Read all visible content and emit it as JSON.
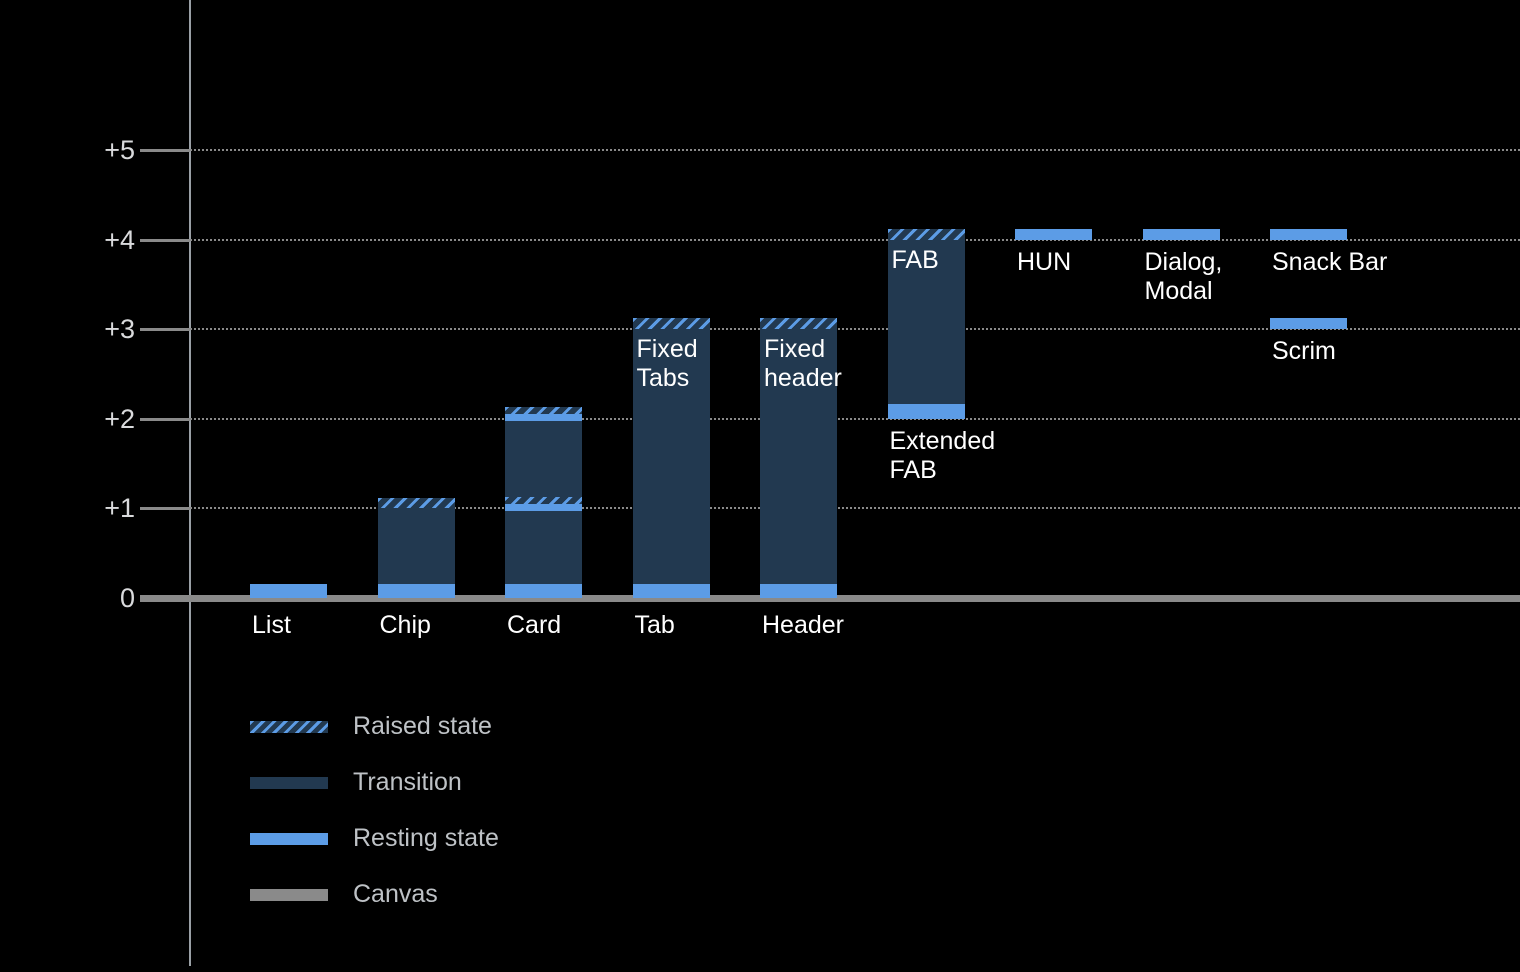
{
  "chart_data": {
    "type": "bar",
    "title": "",
    "background": "#000000",
    "ylim": [
      0,
      5.8
    ],
    "grid": {
      "style": "dotted",
      "levels": [
        1,
        2,
        3,
        4,
        5
      ],
      "baseline_value": 0,
      "baseline_style": "solid"
    },
    "yticks": [
      {
        "value": 5,
        "label": "+5"
      },
      {
        "value": 4,
        "label": "+4"
      },
      {
        "value": 3,
        "label": "+3"
      },
      {
        "value": 2,
        "label": "+2"
      },
      {
        "value": 1,
        "label": "+1"
      },
      {
        "value": 0,
        "label": "0"
      }
    ],
    "colors": {
      "resting": "#5c9ce6",
      "transition": "#223950",
      "canvas": "#8a8a8a",
      "grid": "#8a8a8a"
    },
    "legend": [
      {
        "style": "raised",
        "label": "Raised state"
      },
      {
        "style": "transition",
        "label": "Transition"
      },
      {
        "style": "resting",
        "label": "Resting state"
      },
      {
        "style": "canvas",
        "label": "Canvas"
      }
    ],
    "columns": [
      {
        "axis_label": "List",
        "bands": [
          {
            "style": "resting",
            "from": 0,
            "to": 0.16
          }
        ]
      },
      {
        "axis_label": "Chip",
        "bands": [
          {
            "style": "resting",
            "from": 0,
            "to": 0.16
          },
          {
            "style": "transition",
            "from": 0.16,
            "to": 1.0
          },
          {
            "style": "raised",
            "from": 1.0,
            "to": 1.12
          }
        ]
      },
      {
        "axis_label": "Card",
        "bands": [
          {
            "style": "resting",
            "from": 0,
            "to": 0.16
          },
          {
            "style": "transition",
            "from": 0.16,
            "to": 0.97
          },
          {
            "style": "resting",
            "from": 0.97,
            "to": 1.05
          },
          {
            "style": "raised",
            "from": 1.05,
            "to": 1.13
          },
          {
            "style": "transition",
            "from": 1.13,
            "to": 1.97
          },
          {
            "style": "resting",
            "from": 1.97,
            "to": 2.05
          },
          {
            "style": "raised",
            "from": 2.05,
            "to": 2.13
          }
        ]
      },
      {
        "axis_label": "Tab",
        "inner_label": [
          "Fixed",
          "Tabs"
        ],
        "bands": [
          {
            "style": "resting",
            "from": 0,
            "to": 0.16
          },
          {
            "style": "transition",
            "from": 0.16,
            "to": 3.0
          },
          {
            "style": "raised",
            "from": 3.0,
            "to": 3.12
          }
        ]
      },
      {
        "axis_label": "Header",
        "inner_label": [
          "Fixed",
          "header"
        ],
        "bands": [
          {
            "style": "resting",
            "from": 0,
            "to": 0.16
          },
          {
            "style": "transition",
            "from": 0.16,
            "to": 3.0
          },
          {
            "style": "raised",
            "from": 3.0,
            "to": 3.12
          }
        ]
      },
      {
        "inner_label": [
          "FAB"
        ],
        "bands": [
          {
            "style": "resting",
            "from": 2.0,
            "to": 2.16,
            "label_below": [
              "Extended",
              "FAB"
            ]
          },
          {
            "style": "transition",
            "from": 2.16,
            "to": 4.0
          },
          {
            "style": "raised",
            "from": 4.0,
            "to": 4.12
          }
        ]
      },
      {
        "bands": [
          {
            "style": "resting",
            "from": 4.0,
            "to": 4.12,
            "label_below": [
              "HUN"
            ]
          }
        ]
      },
      {
        "bands": [
          {
            "style": "resting",
            "from": 4.0,
            "to": 4.12,
            "label_below": [
              "Dialog,",
              "Modal"
            ]
          }
        ]
      },
      {
        "bands": [
          {
            "style": "resting",
            "from": 4.0,
            "to": 4.12,
            "label_below": [
              "Snack Bar"
            ]
          },
          {
            "style": "resting",
            "from": 3.0,
            "to": 3.12,
            "label_below": [
              "Scrim"
            ]
          }
        ]
      }
    ]
  }
}
